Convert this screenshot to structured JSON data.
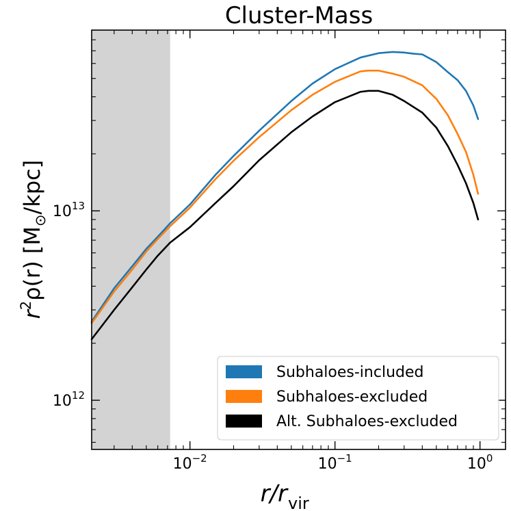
{
  "chart_data": {
    "type": "line",
    "title": "Cluster-Mass",
    "xlabel": {
      "main": "r/r",
      "sub": "vir"
    },
    "ylabel": {
      "prefix": "r",
      "sup": "2",
      "mid": "ρ(r) [M",
      "sub": "⊙",
      "suffix": "/kpc]"
    },
    "x_scale": "log",
    "y_scale": "log",
    "xlim": [
      0.0021,
      1.5
    ],
    "ylim": [
      550000000000.0,
      90000000000000.0
    ],
    "x_ticks": [
      {
        "value": 0.01,
        "base": "10",
        "exp": "−2"
      },
      {
        "value": 0.1,
        "base": "10",
        "exp": "−1"
      },
      {
        "value": 1.0,
        "base": "10",
        "exp": "0"
      }
    ],
    "y_ticks": [
      {
        "value": 1000000000000.0,
        "base": "10",
        "exp": "12"
      },
      {
        "value": 10000000000000.0,
        "base": "10",
        "exp": "13"
      }
    ],
    "shaded_region": {
      "x_from": 0.0021,
      "x_to": 0.0073,
      "color": "#d3d3d3"
    },
    "legend_position": "lower-right",
    "series": [
      {
        "name": "Subhaloes-included",
        "color": "#1f77b4",
        "x": [
          0.0021,
          0.003,
          0.004,
          0.005,
          0.006,
          0.0073,
          0.01,
          0.015,
          0.02,
          0.03,
          0.05,
          0.07,
          0.1,
          0.15,
          0.2,
          0.25,
          0.3,
          0.35,
          0.4,
          0.5,
          0.6,
          0.7,
          0.8,
          0.9,
          0.97
        ],
        "y": [
          2600000000000.0,
          3900000000000.0,
          5100000000000.0,
          6300000000000.0,
          7300000000000.0,
          8600000000000.0,
          10800000000000.0,
          15500000000000.0,
          19500000000000.0,
          26500000000000.0,
          38000000000000.0,
          47000000000000.0,
          56000000000000.0,
          64500000000000.0,
          68000000000000.0,
          69000000000000.0,
          68500000000000.0,
          67500000000000.0,
          67000000000000.0,
          61000000000000.0,
          54000000000000.0,
          49000000000000.0,
          43000000000000.0,
          36000000000000.0,
          30500000000000.0
        ]
      },
      {
        "name": "Subhaloes-excluded",
        "color": "#ff7f0e",
        "x": [
          0.0021,
          0.003,
          0.004,
          0.005,
          0.006,
          0.0073,
          0.01,
          0.015,
          0.02,
          0.03,
          0.05,
          0.07,
          0.1,
          0.15,
          0.17,
          0.2,
          0.25,
          0.3,
          0.4,
          0.5,
          0.6,
          0.7,
          0.8,
          0.9,
          0.97
        ],
        "y": [
          2550000000000.0,
          3750000000000.0,
          4900000000000.0,
          6100000000000.0,
          7100000000000.0,
          8300000000000.0,
          10400000000000.0,
          14700000000000.0,
          18400000000000.0,
          24500000000000.0,
          34000000000000.0,
          41000000000000.0,
          48000000000000.0,
          54500000000000.0,
          55000000000000.0,
          55000000000000.0,
          53000000000000.0,
          51000000000000.0,
          46000000000000.0,
          39000000000000.0,
          32000000000000.0,
          25500000000000.0,
          20500000000000.0,
          15500000000000.0,
          12300000000000.0
        ]
      },
      {
        "name": "Alt. Subhaloes-excluded",
        "color": "#000000",
        "x": [
          0.0021,
          0.003,
          0.004,
          0.005,
          0.006,
          0.0073,
          0.01,
          0.015,
          0.02,
          0.03,
          0.05,
          0.07,
          0.1,
          0.15,
          0.17,
          0.2,
          0.25,
          0.3,
          0.4,
          0.5,
          0.6,
          0.7,
          0.8,
          0.9,
          0.97
        ],
        "y": [
          2100000000000.0,
          3000000000000.0,
          3950000000000.0,
          4900000000000.0,
          5800000000000.0,
          6800000000000.0,
          8200000000000.0,
          11000000000000.0,
          13500000000000.0,
          18500000000000.0,
          26000000000000.0,
          31500000000000.0,
          37500000000000.0,
          42500000000000.0,
          43000000000000.0,
          43000000000000.0,
          41000000000000.0,
          38000000000000.0,
          33000000000000.0,
          27500000000000.0,
          22000000000000.0,
          17500000000000.0,
          14000000000000.0,
          11000000000000.0,
          9000000000000.0
        ]
      }
    ]
  }
}
